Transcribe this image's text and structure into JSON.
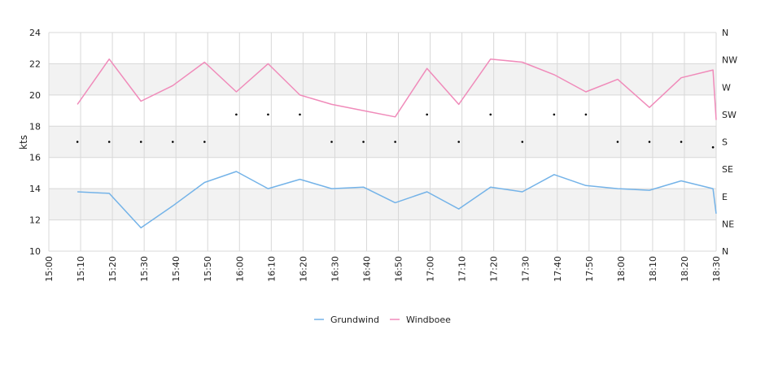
{
  "chart_data": {
    "type": "line",
    "ylabel": "kts",
    "ylim": [
      10,
      24
    ],
    "yticks": [
      10,
      12,
      14,
      16,
      18,
      20,
      22,
      24
    ],
    "y_right_labels": [
      "N",
      "NE",
      "E",
      "SE",
      "S",
      "SW",
      "W",
      "NW",
      "N"
    ],
    "x_ticks": [
      "15:00",
      "15:10",
      "15:20",
      "15:30",
      "15:40",
      "15:50",
      "16:00",
      "16:10",
      "16:20",
      "16:30",
      "16:40",
      "16:50",
      "17:00",
      "17:10",
      "17:20",
      "17:30",
      "17:40",
      "17:50",
      "18:00",
      "18:10",
      "18:20",
      "18:30"
    ],
    "x_minutes": [
      0,
      10,
      20,
      30,
      40,
      50,
      60,
      70,
      80,
      90,
      100,
      110,
      120,
      130,
      140,
      150,
      160,
      170,
      180,
      190,
      200,
      210
    ],
    "grid": true,
    "legend_position": "bottom",
    "series": [
      {
        "name": "Grundwind",
        "color": "#74b3e8",
        "x": [
          9,
          19,
          29,
          39,
          49,
          59,
          69,
          79,
          89,
          99,
          109,
          119,
          129,
          139,
          149,
          159,
          169,
          179,
          189,
          199,
          209,
          210
        ],
        "values": [
          13.8,
          13.7,
          11.5,
          12.9,
          14.4,
          15.1,
          14.0,
          14.6,
          14.0,
          14.1,
          13.1,
          13.8,
          12.7,
          14.1,
          13.8,
          14.9,
          14.2,
          14.0,
          13.9,
          14.5,
          14.0,
          12.4
        ]
      },
      {
        "name": "Windboee",
        "color": "#f08bba",
        "x": [
          9,
          19,
          29,
          39,
          49,
          59,
          69,
          79,
          89,
          99,
          109,
          119,
          129,
          139,
          149,
          159,
          169,
          179,
          189,
          199,
          209,
          210
        ],
        "values": [
          19.4,
          22.3,
          19.6,
          20.6,
          22.1,
          20.2,
          22.0,
          20.0,
          19.4,
          19.0,
          18.6,
          21.7,
          19.4,
          22.3,
          22.1,
          21.3,
          20.2,
          21.0,
          19.2,
          21.1,
          21.6,
          18.4
        ]
      }
    ],
    "direction_markers": {
      "x": [
        9,
        19,
        29,
        39,
        49,
        59,
        69,
        79,
        89,
        99,
        109,
        119,
        129,
        139,
        149,
        159,
        169,
        179,
        189,
        199,
        209
      ],
      "level": [
        4,
        4,
        4,
        4,
        4,
        5,
        5,
        5,
        4,
        4,
        4,
        5,
        4,
        5,
        4,
        5,
        5,
        4,
        4,
        4,
        3.8
      ]
    }
  },
  "colors": {
    "band": "#f2f2f2",
    "gridline": "#d8d8d8",
    "axis": "#cccccc",
    "marker": "#000000"
  }
}
